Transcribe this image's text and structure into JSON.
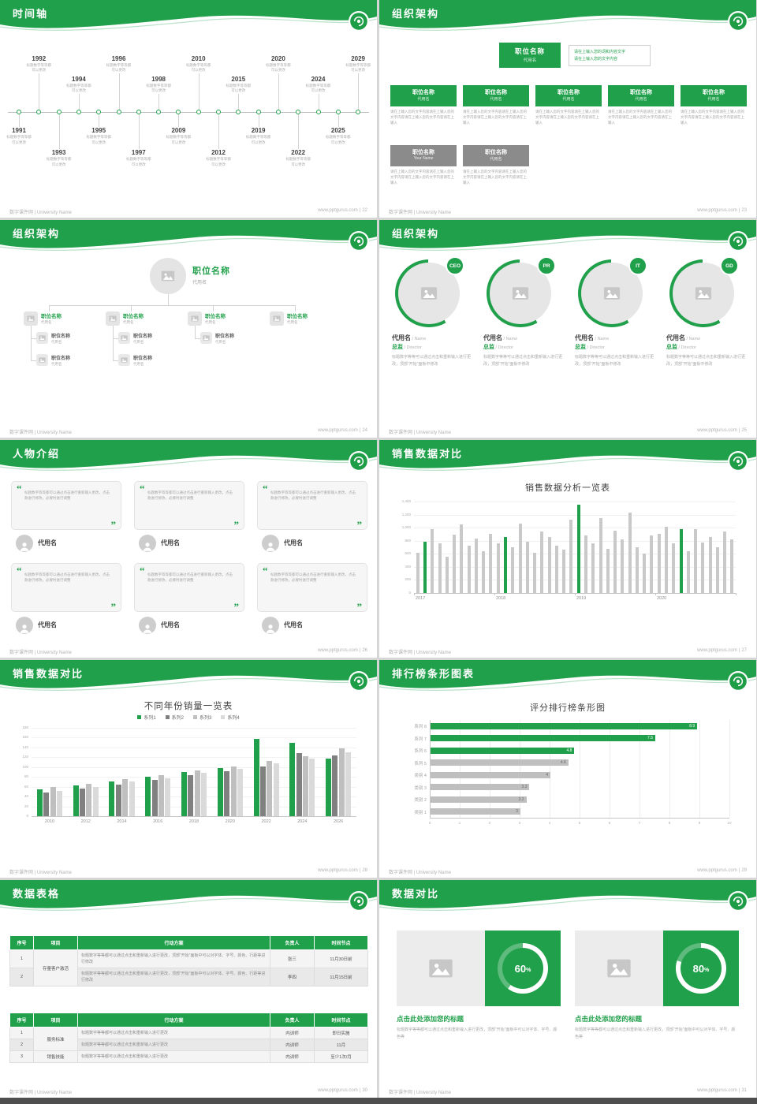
{
  "theme": {
    "green": "#21A04B",
    "bar_gray": "#C9C9C9"
  },
  "footer": {
    "brand": "数字课件网 | University Name",
    "site": "www.pptgurus.com",
    "sep": "|"
  },
  "slides": {
    "timeline": {
      "title": "时间轴",
      "page": "22",
      "note": [
        "标题数字等等都",
        "可以更改"
      ],
      "entries": [
        {
          "year": "1991",
          "side": "bottom",
          "level": 1
        },
        {
          "year": "1992",
          "side": "top",
          "level": 2
        },
        {
          "year": "1993",
          "side": "bottom",
          "level": 2
        },
        {
          "year": "1994",
          "side": "top",
          "level": 1
        },
        {
          "year": "1995",
          "side": "bottom",
          "level": 1
        },
        {
          "year": "1996",
          "side": "top",
          "level": 2
        },
        {
          "year": "1997",
          "side": "bottom",
          "level": 2
        },
        {
          "year": "1998",
          "side": "top",
          "level": 1
        },
        {
          "year": "2009",
          "side": "bottom",
          "level": 1
        },
        {
          "year": "2010",
          "side": "top",
          "level": 2
        },
        {
          "year": "2012",
          "side": "bottom",
          "level": 2
        },
        {
          "year": "2015",
          "side": "top",
          "level": 1
        },
        {
          "year": "2019",
          "side": "bottom",
          "level": 1
        },
        {
          "year": "2020",
          "side": "top",
          "level": 2
        },
        {
          "year": "2022",
          "side": "bottom",
          "level": 2
        },
        {
          "year": "2024",
          "side": "top",
          "level": 1
        },
        {
          "year": "2025",
          "side": "bottom",
          "level": 1
        },
        {
          "year": "2029",
          "side": "top",
          "level": 2
        }
      ]
    },
    "org_boxes": {
      "title": "组织架构",
      "page": "23",
      "root": {
        "name": "职位名称",
        "alias": "代用名"
      },
      "root_note": [
        "请在上输入您的词和内容文字",
        "请在上输入您的文字内容"
      ],
      "note": "请在上输入您的文字内容请在上输入您的文字内容请在上输入您的文字内容请在上输入",
      "row": [
        {
          "name": "职位名称",
          "alias": "代用名"
        },
        {
          "name": "职位名称",
          "alias": "代用名"
        },
        {
          "name": "职位名称",
          "alias": "代用名"
        },
        {
          "name": "职位名称",
          "alias": "代用名"
        },
        {
          "name": "职位名称",
          "alias": "代用名"
        }
      ],
      "gray_row": [
        {
          "name": "职位名称",
          "alias": "Your Name"
        },
        {
          "name": "职位名称",
          "alias": "代用名"
        }
      ]
    },
    "org_tree": {
      "title": "组织架构",
      "page": "24",
      "root": {
        "name": "职位名称",
        "alias": "代用名"
      },
      "nodes": [
        {
          "name": "职位名称",
          "alias": "代用名",
          "children": [
            {
              "name": "职位名称",
              "alias": "代用名"
            },
            {
              "name": "职位名称",
              "alias": "代用名"
            }
          ]
        },
        {
          "name": "职位名称",
          "alias": "代用名",
          "children": [
            {
              "name": "职位名称",
              "alias": "代用名"
            },
            {
              "name": "职位名称",
              "alias": "代用名"
            }
          ]
        },
        {
          "name": "职位名称",
          "alias": "代用名",
          "children": [
            {
              "name": "职位名称",
              "alias": "代用名"
            }
          ]
        },
        {
          "name": "职位名称",
          "alias": "代用名",
          "children": []
        }
      ]
    },
    "org_members": {
      "title": "组织架构",
      "page": "25",
      "desc": "标题数字等等可以通过点击和重新输入进行更改，顶部“开始”面板中修改",
      "members": [
        {
          "badge": "CEO",
          "name": "代用名",
          "name_en": "Name",
          "role": "总监",
          "role_en": "Director"
        },
        {
          "badge": "PR",
          "name": "代用名",
          "name_en": "Name",
          "role": "总监",
          "role_en": "Director"
        },
        {
          "badge": "IT",
          "name": "代用名",
          "name_en": "Name",
          "role": "总监",
          "role_en": "Director"
        },
        {
          "badge": "GD",
          "name": "代用名",
          "name_en": "Name",
          "role": "总监",
          "role_en": "Director"
        }
      ]
    },
    "people": {
      "title": "人物介绍",
      "page": "26",
      "quote": "标题数字等等都可以通过点击进行重新输入更改，点击款进行修改，必要时进行调整",
      "cards": [
        {
          "name": "代用名"
        },
        {
          "name": "代用名"
        },
        {
          "name": "代用名"
        },
        {
          "name": "代用名"
        },
        {
          "name": "代用名"
        },
        {
          "name": "代用名"
        }
      ]
    },
    "sales1": {
      "title": "销售数据对比",
      "page": "27"
    },
    "sales2": {
      "title": "销售数据对比",
      "page": "28"
    },
    "ranking": {
      "title": "排行榜条形图表",
      "page": "29"
    },
    "tables": {
      "title": "数据表格",
      "page": "30",
      "table1": {
        "headers": [
          "序号",
          "项目",
          "行动方案",
          "负责人",
          "时间节点"
        ],
        "project": "存量客户激活",
        "rows": [
          {
            "no": "1",
            "plan": "标题数字等等都可以通过点击和重新输入进行更改，顶部“开始”面板中可以对字体、字号、颜色、行距等进行修改",
            "owner": "张三",
            "time": "11月30日前"
          },
          {
            "no": "2",
            "plan": "标题数字等等都可以通过点击和重新输入进行更改，顶部“开始”面板中可以对字体、字号、颜色、行距等进行修改",
            "owner": "李四",
            "time": "11月15日前"
          }
        ]
      },
      "table2": {
        "headers": [
          "序号",
          "项目",
          "行动方案",
          "负责人",
          "时间节点"
        ],
        "groups": [
          {
            "project": "服务标准",
            "rows": [
              {
                "no": "1",
                "plan": "标题数字等等都可以通过点击和重新输入进行更改",
                "owner": "内训师",
                "time": "即日实施"
              },
              {
                "no": "2",
                "plan": "标题数字等等都可以通过点击和重新输入进行更改",
                "owner": "内训师",
                "time": "11月"
              }
            ]
          },
          {
            "project": "销售技能",
            "rows": [
              {
                "no": "3",
                "plan": "标题数字等等都可以通过点击和重新输入进行更改",
                "owner": "内训师",
                "time": "至少1次/月"
              }
            ]
          }
        ]
      }
    },
    "compare": {
      "title": "数据对比",
      "page": "31",
      "panels": [
        {
          "percent": 60,
          "heading": "点击此处添加您的标题",
          "desc": "标题数字等等都可以通过点击和重新输入进行更改，顶部“开始”面板中可以对字体、字号、颜色等"
        },
        {
          "percent": 80,
          "heading": "点击此处添加您的标题",
          "desc": "标题数字等等都可以通过点击和重新输入进行更改，顶部“开始”面板中可以对字体、字号、颜色等"
        }
      ]
    }
  },
  "chart_data": [
    {
      "type": "bar",
      "slide": "sales1",
      "title": "销售数据分析一览表",
      "categories": [
        "2017",
        "2018",
        "2019",
        "2020"
      ],
      "values": [
        620,
        780,
        980,
        760,
        560,
        890,
        1050,
        720,
        830,
        640,
        910,
        760,
        860,
        700,
        1060,
        780,
        620,
        940,
        860,
        720,
        660,
        1120,
        1350,
        880,
        760,
        1150,
        680,
        960,
        820,
        1230,
        700,
        600,
        880,
        900,
        1020,
        760,
        980,
        640,
        980,
        770,
        860,
        700,
        940,
        820
      ],
      "green_indices": [
        1,
        12,
        22,
        36
      ],
      "ylim": [
        0,
        1400
      ],
      "ytick_step": 200,
      "legend": "none",
      "grid": "horizontal-light"
    },
    {
      "type": "bar",
      "slide": "sales2",
      "title": "不同年份销量一览表",
      "categories": [
        "2010",
        "2012",
        "2014",
        "2016",
        "2018",
        "2020",
        "2022",
        "2024",
        "2026"
      ],
      "series": [
        {
          "name": "系列1",
          "color": "#21A04B",
          "values": [
            55,
            62,
            70,
            80,
            90,
            98,
            158,
            150,
            118
          ]
        },
        {
          "name": "系列2",
          "color": "#808080",
          "values": [
            48,
            56,
            64,
            74,
            84,
            92,
            102,
            128,
            124
          ]
        },
        {
          "name": "系列3",
          "color": "#BFBFBF",
          "values": [
            60,
            66,
            76,
            84,
            94,
            102,
            112,
            122,
            138
          ]
        },
        {
          "name": "系列4",
          "color": "#DADADA",
          "values": [
            52,
            60,
            70,
            78,
            88,
            96,
            108,
            118,
            130
          ]
        }
      ],
      "ylim": [
        0,
        180
      ],
      "ytick_step": 20,
      "legend": "top"
    },
    {
      "type": "hbar",
      "slide": "ranking",
      "title": "评分排行榜条形图",
      "categories": [
        "系列 8",
        "系列 7",
        "系列 6",
        "系列 5",
        "类别 4",
        "类别 3",
        "类别 2",
        "类别 1"
      ],
      "values": [
        8.9,
        7.5,
        4.8,
        4.6,
        4,
        3.3,
        3.2,
        3
      ],
      "colors": [
        "#21A04B",
        "#21A04B",
        "#21A04B",
        "#BFBFBF",
        "#BFBFBF",
        "#BFBFBF",
        "#BFBFBF",
        "#BFBFBF"
      ],
      "xlim": [
        0,
        10
      ],
      "xtick_step": 1,
      "grid": "vertical-light"
    }
  ]
}
